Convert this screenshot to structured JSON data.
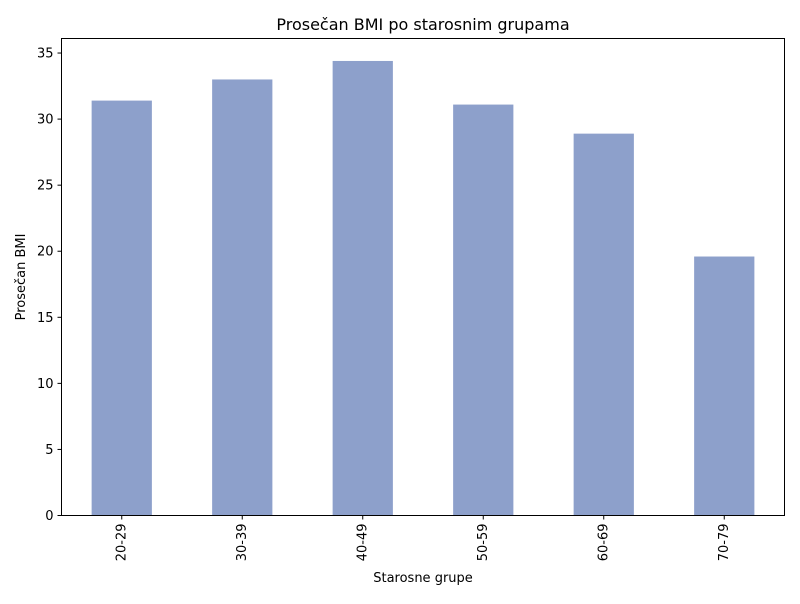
{
  "chart_data": {
    "type": "bar",
    "title": "Prosečan BMI po starosnim grupama",
    "xlabel": "Starosne grupe",
    "ylabel": "Prosečan BMI",
    "categories": [
      "20-29",
      "30-39",
      "40-49",
      "50-59",
      "60-69",
      "70-79"
    ],
    "values": [
      31.4,
      33.0,
      34.4,
      31.1,
      28.9,
      19.6
    ],
    "ylim": [
      0,
      36.1
    ],
    "yticks": [
      "0",
      "5",
      "10",
      "15",
      "20",
      "25",
      "30",
      "35"
    ],
    "grid": false,
    "legend": "none",
    "bar_color": "#8da0cb",
    "xtick_rotation": "vertical"
  }
}
